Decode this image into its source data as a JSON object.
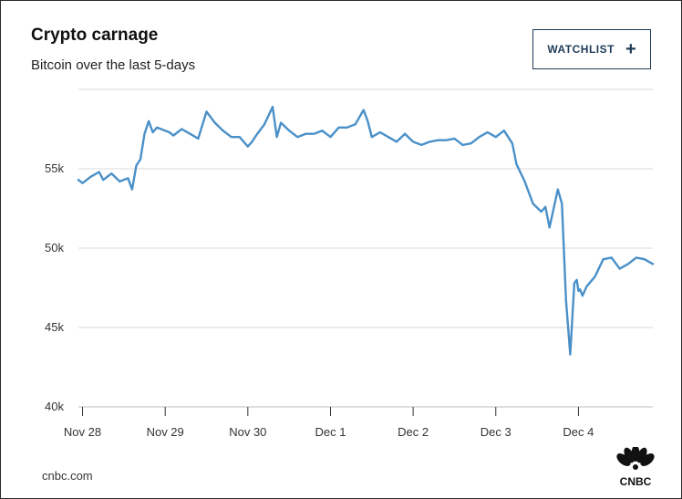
{
  "header": {
    "title": "Crypto carnage",
    "subtitle": "Bitcoin over the last 5-days",
    "watchlist_label": "WATCHLIST",
    "watchlist_icon": "plus-icon"
  },
  "footer": {
    "source": "cnbc.com",
    "logo_text": "CNBC",
    "logo_icon": "cnbc-peacock-logo"
  },
  "colors": {
    "line": "#4a90c8",
    "grid": "#d9d9d9",
    "button_border": "#1f3b57"
  },
  "chart_data": {
    "type": "line",
    "title": "Crypto carnage",
    "subtitle": "Bitcoin over the last 5-days",
    "xlabel": "",
    "ylabel": "",
    "x_ticks": [
      "Nov 28",
      "Nov 29",
      "Nov 30",
      "Dec 1",
      "Dec 2",
      "Dec 3",
      "Dec 4"
    ],
    "y_ticks": [
      "40k",
      "45k",
      "50k",
      "55k"
    ],
    "ylim": [
      40000,
      60000
    ],
    "xlim_days": [
      -0.05,
      6.9
    ],
    "grid": true,
    "series": [
      {
        "x": [
          -0.05,
          0.0,
          0.1,
          0.2,
          0.25,
          0.35,
          0.45,
          0.55,
          0.6,
          0.65,
          0.7,
          0.75,
          0.8,
          0.85,
          0.9,
          0.95,
          1.0,
          1.05,
          1.1,
          1.2,
          1.3,
          1.4,
          1.5,
          1.6,
          1.7,
          1.8,
          1.9,
          2.0,
          2.05,
          2.1,
          2.2,
          2.3,
          2.35,
          2.4,
          2.5,
          2.6,
          2.7,
          2.8,
          2.9,
          3.0,
          3.1,
          3.2,
          3.3,
          3.4,
          3.45,
          3.5,
          3.6,
          3.7,
          3.8,
          3.9,
          4.0,
          4.1,
          4.2,
          4.3,
          4.4,
          4.5,
          4.6,
          4.7,
          4.8,
          4.9,
          5.0,
          5.1,
          5.2,
          5.25,
          5.35,
          5.45,
          5.55,
          5.6,
          5.65,
          5.75,
          5.8,
          5.85,
          5.9,
          5.95,
          5.98,
          6.0,
          6.02,
          6.05,
          6.1,
          6.2,
          6.3,
          6.4,
          6.5,
          6.6,
          6.7,
          6.8,
          6.9
        ],
        "y": [
          54300,
          54100,
          54500,
          54800,
          54300,
          54700,
          54200,
          54400,
          53700,
          55200,
          55600,
          57200,
          58000,
          57300,
          57600,
          57500,
          57400,
          57300,
          57100,
          57500,
          57200,
          56900,
          58600,
          57900,
          57400,
          57000,
          57000,
          56400,
          56700,
          57100,
          57800,
          58900,
          57000,
          57900,
          57400,
          57000,
          57200,
          57200,
          57400,
          57000,
          57600,
          57600,
          57800,
          58700,
          58000,
          57000,
          57300,
          57000,
          56700,
          57200,
          56700,
          56500,
          56700,
          56800,
          56800,
          56900,
          56500,
          56600,
          57000,
          57300,
          57000,
          57400,
          56600,
          55300,
          54200,
          52800,
          52300,
          52600,
          51300,
          53700,
          52800,
          46700,
          43300,
          47800,
          48000,
          47300,
          47400,
          47000,
          47600,
          48200,
          49300,
          49400,
          48700,
          49000,
          49400,
          49300,
          49000
        ]
      }
    ]
  }
}
